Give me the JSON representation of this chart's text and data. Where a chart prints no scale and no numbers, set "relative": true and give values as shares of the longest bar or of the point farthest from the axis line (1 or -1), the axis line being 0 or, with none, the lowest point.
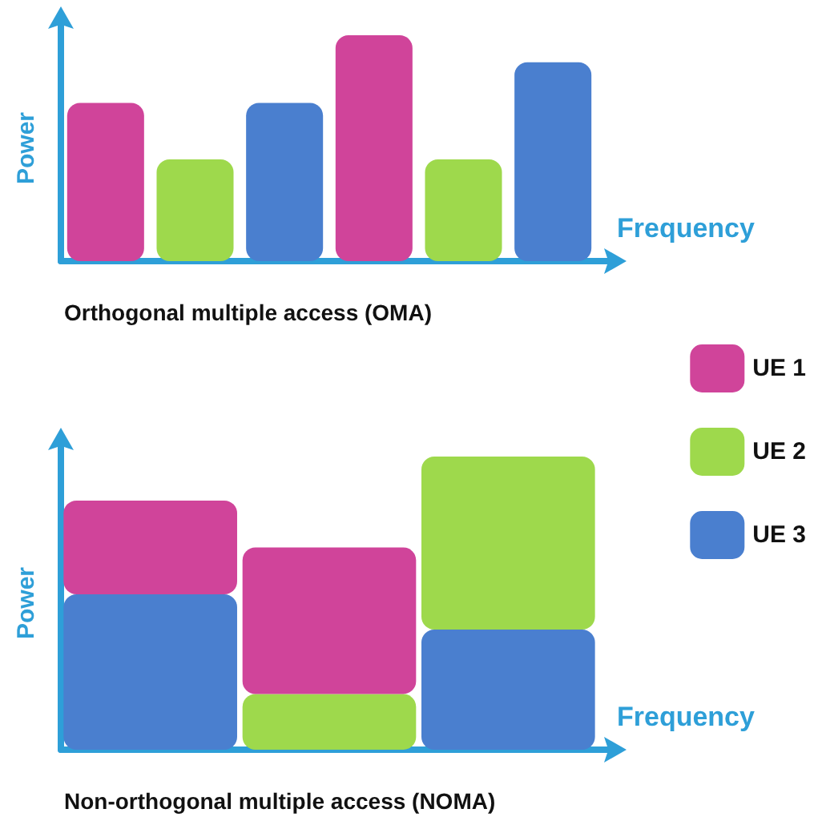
{
  "chart_data": [
    {
      "type": "bar",
      "title": "Orthogonal multiple access (OMA)",
      "xlabel": "Frequency",
      "ylabel": "Power",
      "relative": true,
      "categories": [
        null,
        null,
        null,
        null,
        null,
        null
      ],
      "values": [
        0.7,
        0.45,
        0.7,
        1,
        0.45,
        0.88
      ],
      "colors": [
        "#d0449a",
        "#9ed94c",
        "#4a7fcf",
        "#d0449a",
        "#9ed94c",
        "#4a7fcf"
      ],
      "grid": false
    },
    {
      "type": "bar",
      "title": "Non-orthogonal multiple access (NOMA)",
      "xlabel": "Frequency",
      "ylabel": "Power",
      "relative": true,
      "stacked": true,
      "legend": "right",
      "grid": false,
      "categories": [
        null,
        null,
        null
      ],
      "series": [
        {
          "name": "UE 3",
          "color": "#4a7fcf",
          "values": [
            0.53,
            null,
            0.41
          ]
        },
        {
          "name": "UE 2",
          "color": "#9ed94c",
          "values": [
            null,
            0.19,
            0.59
          ]
        },
        {
          "name": "UE 1",
          "color": "#d0449a",
          "values": [
            0.32,
            0.5,
            null
          ]
        }
      ]
    }
  ]
}
